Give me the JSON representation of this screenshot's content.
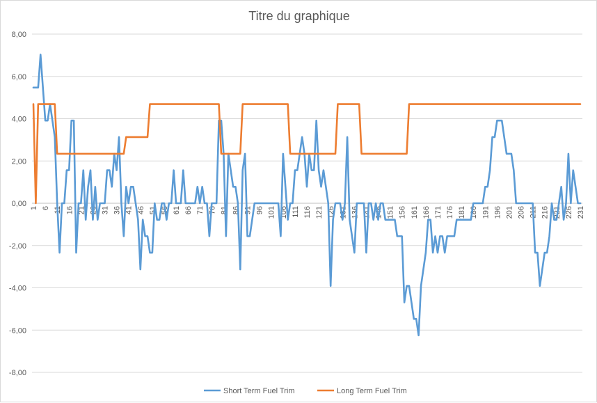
{
  "chart_data": {
    "type": "line",
    "title": "Titre du graphique",
    "xlabel": "",
    "ylabel": "",
    "ylim": [
      -8,
      8
    ],
    "ytick_step": 2,
    "ytick_labels": [
      "8,00",
      "6,00",
      "4,00",
      "2,00",
      "0,00",
      "-2,00",
      "-4,00",
      "-6,00",
      "-8,00"
    ],
    "x_start": 1,
    "x_end": 231,
    "x_tick_step": 5,
    "grid": "horizontal",
    "legend_position": "bottom",
    "series": [
      {
        "name": "Short Term Fuel Trim",
        "color": "#5b9bd5",
        "points": [
          [
            1,
            5.47
          ],
          [
            2,
            5.47
          ],
          [
            3,
            5.47
          ],
          [
            4,
            7.03
          ],
          [
            5,
            5.47
          ],
          [
            6,
            3.91
          ],
          [
            7,
            3.91
          ],
          [
            8,
            4.69
          ],
          [
            9,
            3.91
          ],
          [
            10,
            3.13
          ],
          [
            11,
            0.0
          ],
          [
            12,
            -2.34
          ],
          [
            13,
            0.0
          ],
          [
            14,
            0.0
          ],
          [
            15,
            1.56
          ],
          [
            16,
            1.56
          ],
          [
            17,
            3.91
          ],
          [
            18,
            3.91
          ],
          [
            19,
            -2.34
          ],
          [
            20,
            0.0
          ],
          [
            21,
            0.0
          ],
          [
            22,
            1.56
          ],
          [
            23,
            -0.78
          ],
          [
            24,
            0.78
          ],
          [
            25,
            1.56
          ],
          [
            26,
            -0.78
          ],
          [
            27,
            0.78
          ],
          [
            28,
            -0.78
          ],
          [
            29,
            0.0
          ],
          [
            30,
            0.0
          ],
          [
            31,
            0.0
          ],
          [
            32,
            1.56
          ],
          [
            33,
            1.56
          ],
          [
            34,
            0.78
          ],
          [
            35,
            2.34
          ],
          [
            36,
            1.56
          ],
          [
            37,
            3.13
          ],
          [
            38,
            0.0
          ],
          [
            39,
            -1.56
          ],
          [
            40,
            0.78
          ],
          [
            41,
            0.0
          ],
          [
            42,
            0.78
          ],
          [
            43,
            0.78
          ],
          [
            44,
            0.0
          ],
          [
            45,
            -0.78
          ],
          [
            46,
            -3.13
          ],
          [
            47,
            -0.78
          ],
          [
            48,
            -1.56
          ],
          [
            49,
            -1.56
          ],
          [
            50,
            -2.34
          ],
          [
            51,
            -2.34
          ],
          [
            52,
            0.0
          ],
          [
            53,
            -0.78
          ],
          [
            54,
            -0.78
          ],
          [
            55,
            0.0
          ],
          [
            56,
            0.0
          ],
          [
            57,
            -0.78
          ],
          [
            58,
            0.0
          ],
          [
            59,
            0.0
          ],
          [
            60,
            1.56
          ],
          [
            61,
            0.0
          ],
          [
            62,
            0.0
          ],
          [
            63,
            0.0
          ],
          [
            64,
            1.56
          ],
          [
            65,
            0.0
          ],
          [
            66,
            0.0
          ],
          [
            67,
            0.0
          ],
          [
            68,
            0.0
          ],
          [
            69,
            0.0
          ],
          [
            70,
            0.78
          ],
          [
            71,
            0.0
          ],
          [
            72,
            0.78
          ],
          [
            73,
            0.0
          ],
          [
            74,
            0.0
          ],
          [
            75,
            -1.56
          ],
          [
            76,
            0.0
          ],
          [
            77,
            0.0
          ],
          [
            78,
            0.0
          ],
          [
            79,
            3.91
          ],
          [
            80,
            3.91
          ],
          [
            81,
            2.34
          ],
          [
            82,
            -1.56
          ],
          [
            83,
            2.34
          ],
          [
            84,
            1.56
          ],
          [
            85,
            0.78
          ],
          [
            86,
            0.78
          ],
          [
            87,
            0.0
          ],
          [
            88,
            -3.13
          ],
          [
            89,
            1.56
          ],
          [
            90,
            2.34
          ],
          [
            91,
            -1.56
          ],
          [
            92,
            -1.56
          ],
          [
            93,
            -0.78
          ],
          [
            94,
            0.0
          ],
          [
            95,
            0.0
          ],
          [
            96,
            0.0
          ],
          [
            97,
            0.0
          ],
          [
            98,
            0.0
          ],
          [
            99,
            0.0
          ],
          [
            100,
            0.0
          ],
          [
            101,
            0.0
          ],
          [
            102,
            0.0
          ],
          [
            103,
            0.0
          ],
          [
            104,
            0.0
          ],
          [
            105,
            -1.56
          ],
          [
            106,
            2.34
          ],
          [
            107,
            0.78
          ],
          [
            108,
            -0.78
          ],
          [
            109,
            0.0
          ],
          [
            110,
            0.0
          ],
          [
            111,
            1.56
          ],
          [
            112,
            1.56
          ],
          [
            113,
            2.34
          ],
          [
            114,
            3.13
          ],
          [
            115,
            2.34
          ],
          [
            116,
            0.78
          ],
          [
            117,
            2.34
          ],
          [
            118,
            1.56
          ],
          [
            119,
            1.56
          ],
          [
            120,
            3.91
          ],
          [
            121,
            1.56
          ],
          [
            122,
            0.78
          ],
          [
            123,
            1.56
          ],
          [
            124,
            0.78
          ],
          [
            125,
            0.0
          ],
          [
            126,
            -3.91
          ],
          [
            127,
            -0.78
          ],
          [
            128,
            0.0
          ],
          [
            129,
            0.0
          ],
          [
            130,
            0.0
          ],
          [
            131,
            -0.78
          ],
          [
            132,
            0.0
          ],
          [
            133,
            3.13
          ],
          [
            134,
            -0.78
          ],
          [
            135,
            -1.56
          ],
          [
            136,
            -2.34
          ],
          [
            137,
            0.0
          ],
          [
            138,
            0.0
          ],
          [
            139,
            0.0
          ],
          [
            140,
            0.0
          ],
          [
            141,
            -2.34
          ],
          [
            142,
            0.0
          ],
          [
            143,
            0.0
          ],
          [
            144,
            -0.78
          ],
          [
            145,
            0.0
          ],
          [
            146,
            -0.78
          ],
          [
            147,
            0.0
          ],
          [
            148,
            0.0
          ],
          [
            149,
            -0.78
          ],
          [
            150,
            -0.78
          ],
          [
            151,
            -0.78
          ],
          [
            152,
            -0.78
          ],
          [
            153,
            -0.78
          ],
          [
            154,
            -1.56
          ],
          [
            155,
            -1.56
          ],
          [
            156,
            -1.56
          ],
          [
            157,
            -4.69
          ],
          [
            158,
            -3.91
          ],
          [
            159,
            -3.91
          ],
          [
            160,
            -4.69
          ],
          [
            161,
            -5.47
          ],
          [
            162,
            -5.47
          ],
          [
            163,
            -6.25
          ],
          [
            164,
            -3.91
          ],
          [
            165,
            -3.13
          ],
          [
            166,
            -2.34
          ],
          [
            167,
            -0.78
          ],
          [
            168,
            -0.78
          ],
          [
            169,
            -2.34
          ],
          [
            170,
            -1.56
          ],
          [
            171,
            -2.34
          ],
          [
            172,
            -1.56
          ],
          [
            173,
            -1.56
          ],
          [
            174,
            -2.34
          ],
          [
            175,
            -1.56
          ],
          [
            176,
            -1.56
          ],
          [
            177,
            -1.56
          ],
          [
            178,
            -1.56
          ],
          [
            179,
            -0.78
          ],
          [
            180,
            -0.78
          ],
          [
            181,
            -0.78
          ],
          [
            182,
            -0.78
          ],
          [
            183,
            -0.78
          ],
          [
            184,
            -0.78
          ],
          [
            185,
            -0.78
          ],
          [
            186,
            0.0
          ],
          [
            187,
            0.0
          ],
          [
            188,
            0.0
          ],
          [
            189,
            0.0
          ],
          [
            190,
            0.0
          ],
          [
            191,
            0.78
          ],
          [
            192,
            0.78
          ],
          [
            193,
            1.56
          ],
          [
            194,
            3.13
          ],
          [
            195,
            3.13
          ],
          [
            196,
            3.91
          ],
          [
            197,
            3.91
          ],
          [
            198,
            3.91
          ],
          [
            199,
            3.13
          ],
          [
            200,
            2.34
          ],
          [
            201,
            2.34
          ],
          [
            202,
            2.34
          ],
          [
            203,
            1.56
          ],
          [
            204,
            0.0
          ],
          [
            205,
            0.0
          ],
          [
            206,
            0.0
          ],
          [
            207,
            0.0
          ],
          [
            208,
            0.0
          ],
          [
            209,
            0.0
          ],
          [
            210,
            0.0
          ],
          [
            211,
            0.0
          ],
          [
            212,
            -2.34
          ],
          [
            213,
            -2.34
          ],
          [
            214,
            -3.91
          ],
          [
            215,
            -3.13
          ],
          [
            216,
            -2.34
          ],
          [
            217,
            -2.34
          ],
          [
            218,
            -1.56
          ],
          [
            219,
            0.0
          ],
          [
            220,
            -0.78
          ],
          [
            221,
            -0.78
          ],
          [
            222,
            0.0
          ],
          [
            223,
            0.78
          ],
          [
            224,
            -0.78
          ],
          [
            225,
            0.0
          ],
          [
            226,
            2.34
          ],
          [
            227,
            0.0
          ],
          [
            228,
            1.56
          ],
          [
            229,
            0.78
          ],
          [
            230,
            0.0
          ],
          [
            231,
            0.0
          ]
        ]
      },
      {
        "name": "Long Term Fuel Trim",
        "color": "#ed7d31",
        "points": [
          [
            1,
            4.69
          ],
          [
            2,
            0.0
          ],
          [
            3,
            4.69
          ],
          [
            10,
            4.69
          ],
          [
            11,
            2.34
          ],
          [
            39,
            2.34
          ],
          [
            40,
            3.13
          ],
          [
            49,
            3.13
          ],
          [
            50,
            4.69
          ],
          [
            79,
            4.69
          ],
          [
            80,
            2.34
          ],
          [
            88,
            2.34
          ],
          [
            89,
            4.69
          ],
          [
            108,
            4.69
          ],
          [
            109,
            2.34
          ],
          [
            128,
            2.34
          ],
          [
            129,
            4.69
          ],
          [
            138,
            4.69
          ],
          [
            139,
            2.34
          ],
          [
            158,
            2.34
          ],
          [
            159,
            4.69
          ],
          [
            231,
            4.69
          ]
        ]
      }
    ]
  }
}
